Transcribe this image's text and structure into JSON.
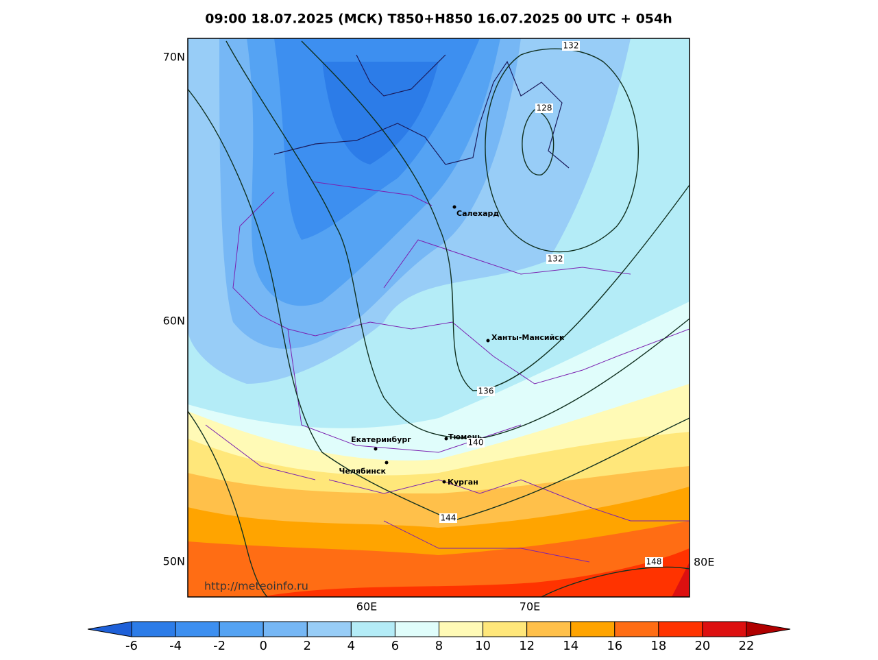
{
  "title": "09:00 18.07.2025 (МСК) T850+H850 16.07.2025 00 UTC + 054h",
  "lat_labels": [
    "70N",
    "60N",
    "50N"
  ],
  "lon_labels": [
    "60E",
    "70E",
    "80E"
  ],
  "cities": [
    "Салехард",
    "Ханты-Мансийск",
    "Тюмень",
    "Екатеринбург",
    "Челябинск",
    "Курган"
  ],
  "contour_labels": [
    132,
    128,
    132,
    136,
    140,
    144,
    148
  ],
  "url": "http://meteoinfo.ru",
  "colorbar": {
    "ticks": [
      -6,
      -4,
      -2,
      0,
      2,
      4,
      6,
      8,
      10,
      12,
      14,
      16,
      18,
      20,
      22
    ],
    "colors": [
      "#2c7ce8",
      "#3d8ff0",
      "#55a3f3",
      "#76b7f5",
      "#98cdf7",
      "#b4ecf7",
      "#e0fdfb",
      "#fffab6",
      "#ffe77a",
      "#ffc04a",
      "#ffa400",
      "#ff6d14",
      "#ff3300",
      "#dd1010"
    ],
    "under": "#1e60d8",
    "over": "#b00000"
  }
}
